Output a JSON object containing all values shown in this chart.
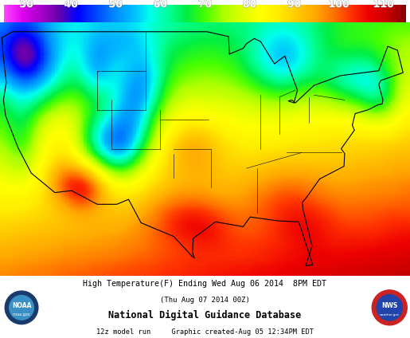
{
  "title_line1": "High Temperature(F) Ending Wed Aug 06 2014  8PM EDT",
  "title_line2": "(Thu Aug 07 2014 00Z)",
  "title_line3": "National Digital Guidance Database",
  "title_line4": "12z model run     Graphic created-Aug 05 12:34PM EDT",
  "colorbar_ticks": [
    30,
    40,
    50,
    60,
    70,
    80,
    90,
    100,
    110
  ],
  "vmin": 25,
  "vmax": 115,
  "background_color": "#ffffff",
  "map_extent": [
    -125,
    -66,
    24,
    50
  ],
  "figsize": [
    5.15,
    4.24
  ],
  "dpi": 100,
  "cmap_colors": [
    "#ff44ff",
    "#dd00ee",
    "#aa00cc",
    "#6600aa",
    "#0000ff",
    "#0044ff",
    "#0088ff",
    "#00bbff",
    "#00ffee",
    "#00ff99",
    "#00ee44",
    "#44ff00",
    "#aaff00",
    "#ddff00",
    "#ffff00",
    "#ffee00",
    "#ffcc00",
    "#ffaa00",
    "#ff7700",
    "#ff3300",
    "#ee0000",
    "#cc0000",
    "#880000"
  ],
  "temp_seed": 42,
  "ocean_color": "#aaddff",
  "map_bg_color": "#cceeFF"
}
